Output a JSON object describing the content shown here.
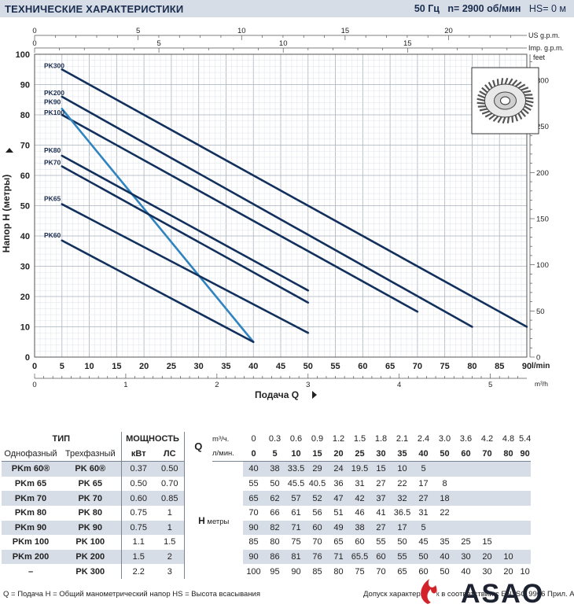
{
  "header": {
    "title": "ТЕХНИЧЕСКИЕ ХАРАКТЕРИСТИКИ",
    "freq": "50 Гц",
    "speed": "n= 2900 об/мин",
    "hs": "HS= 0 м"
  },
  "chart_data": {
    "type": "line",
    "ylabel": "Напор H (метры)",
    "xlabel": "Подача Q",
    "x_unit": "l/min",
    "ylim": [
      0,
      100
    ],
    "xlim": [
      0,
      90
    ],
    "x_ticks": [
      "0",
      "5",
      "10",
      "15",
      "20",
      "25",
      "30",
      "35",
      "40",
      "45",
      "50",
      "55",
      "60",
      "65",
      "70",
      "75",
      "80",
      "85",
      "90"
    ],
    "y_ticks": [
      "0",
      "10",
      "20",
      "30",
      "40",
      "50",
      "60",
      "70",
      "80",
      "90",
      "100"
    ],
    "top_axis_us": {
      "label": "US g.p.m.",
      "ticks": [
        "0",
        "5",
        "10",
        "15",
        "20"
      ]
    },
    "top_axis_imp": {
      "label": "Imp. g.p.m.",
      "ticks": [
        "0",
        "5",
        "10",
        "15"
      ]
    },
    "right_axis": {
      "label": "feet",
      "ticks": [
        "0",
        "50",
        "100",
        "150",
        "200",
        "250",
        "300"
      ]
    },
    "bottom_axis_m3h": {
      "label": "m³/h",
      "ticks": [
        "0",
        "1",
        "2",
        "3",
        "4",
        "5"
      ]
    },
    "grid": true,
    "series": [
      {
        "name": "PK300",
        "x": [
          5,
          90
        ],
        "y": [
          95,
          10
        ],
        "color": "#12305c"
      },
      {
        "name": "PK200",
        "x": [
          5,
          80
        ],
        "y": [
          86,
          10
        ],
        "color": "#12305c"
      },
      {
        "name": "PK100",
        "x": [
          5,
          70
        ],
        "y": [
          80,
          15
        ],
        "color": "#12305c"
      },
      {
        "name": "PK90",
        "x": [
          5,
          40
        ],
        "y": [
          82,
          5
        ],
        "color": "#2f84c0"
      },
      {
        "name": "PK80",
        "x": [
          5,
          50
        ],
        "y": [
          66.5,
          22
        ],
        "color": "#12305c"
      },
      {
        "name": "PK70",
        "x": [
          5,
          50
        ],
        "y": [
          63,
          18
        ],
        "color": "#12305c"
      },
      {
        "name": "PK65",
        "x": [
          5,
          50
        ],
        "y": [
          50.5,
          8
        ],
        "color": "#12305c"
      },
      {
        "name": "PK60",
        "x": [
          5,
          40
        ],
        "y": [
          38.5,
          5
        ],
        "color": "#12305c"
      }
    ]
  },
  "table": {
    "type_label": "ТИП",
    "power_label": "МОЩНОСТЬ",
    "single_label": "Однофазный",
    "three_label": "Трехфазный",
    "kw_label": "кВт",
    "hp_label": "ЛС",
    "q_label": "Q",
    "m3h_label": "m³/ч.",
    "lmin_label": "л/мин.",
    "h_label": "H",
    "h_unit": "метры",
    "q_m3h": [
      "0",
      "0.3",
      "0.6",
      "0.9",
      "1.2",
      "1.5",
      "1.8",
      "2.1",
      "2.4",
      "3.0",
      "3.6",
      "4.2",
      "4.8",
      "5.4"
    ],
    "q_lmin": [
      "0",
      "5",
      "10",
      "15",
      "20",
      "25",
      "30",
      "35",
      "40",
      "50",
      "60",
      "70",
      "80",
      "90"
    ],
    "rows": [
      {
        "single": "PKm 60®",
        "three": "PK 60®",
        "kw": "0.37",
        "hp": "0.50",
        "h": [
          "40",
          "38",
          "33.5",
          "29",
          "24",
          "19.5",
          "15",
          "10",
          "5",
          "",
          "",
          "",
          "",
          ""
        ]
      },
      {
        "single": "PKm 65",
        "three": "PK 65",
        "kw": "0.50",
        "hp": "0.70",
        "h": [
          "55",
          "50",
          "45.5",
          "40.5",
          "36",
          "31",
          "27",
          "22",
          "17",
          "8",
          "",
          "",
          "",
          ""
        ]
      },
      {
        "single": "PKm 70",
        "three": "PK 70",
        "kw": "0.60",
        "hp": "0.85",
        "h": [
          "65",
          "62",
          "57",
          "52",
          "47",
          "42",
          "37",
          "32",
          "27",
          "18",
          "",
          "",
          "",
          ""
        ]
      },
      {
        "single": "PKm 80",
        "three": "PK 80",
        "kw": "0.75",
        "hp": "1",
        "h": [
          "70",
          "66",
          "61",
          "56",
          "51",
          "46",
          "41",
          "36.5",
          "31",
          "22",
          "",
          "",
          "",
          ""
        ]
      },
      {
        "single": "PKm 90",
        "three": "PK 90",
        "kw": "0.75",
        "hp": "1",
        "h": [
          "90",
          "82",
          "71",
          "60",
          "49",
          "38",
          "27",
          "17",
          "5",
          "",
          "",
          "",
          "",
          ""
        ]
      },
      {
        "single": "PKm 100",
        "three": "PK 100",
        "kw": "1.1",
        "hp": "1.5",
        "h": [
          "85",
          "80",
          "75",
          "70",
          "65",
          "60",
          "55",
          "50",
          "45",
          "35",
          "25",
          "15",
          "",
          ""
        ]
      },
      {
        "single": "PKm 200",
        "three": "PK 200",
        "kw": "1.5",
        "hp": "2",
        "h": [
          "90",
          "86",
          "81",
          "76",
          "71",
          "65.5",
          "60",
          "55",
          "50",
          "40",
          "30",
          "20",
          "10",
          ""
        ]
      },
      {
        "single": "–",
        "three": "PK 300",
        "kw": "2.2",
        "hp": "3",
        "h": [
          "100",
          "95",
          "90",
          "85",
          "80",
          "75",
          "70",
          "65",
          "60",
          "50",
          "40",
          "30",
          "20",
          "10"
        ]
      }
    ]
  },
  "footer": {
    "legend": "Q = Подача   H = Общий манометрический напор   HS = Высота всасывания",
    "note": "Допуск характеристик в соответствии с EN ISO 9906 Прил. A"
  },
  "logo": {
    "text": "ASAO",
    "color": "#d2232a"
  }
}
